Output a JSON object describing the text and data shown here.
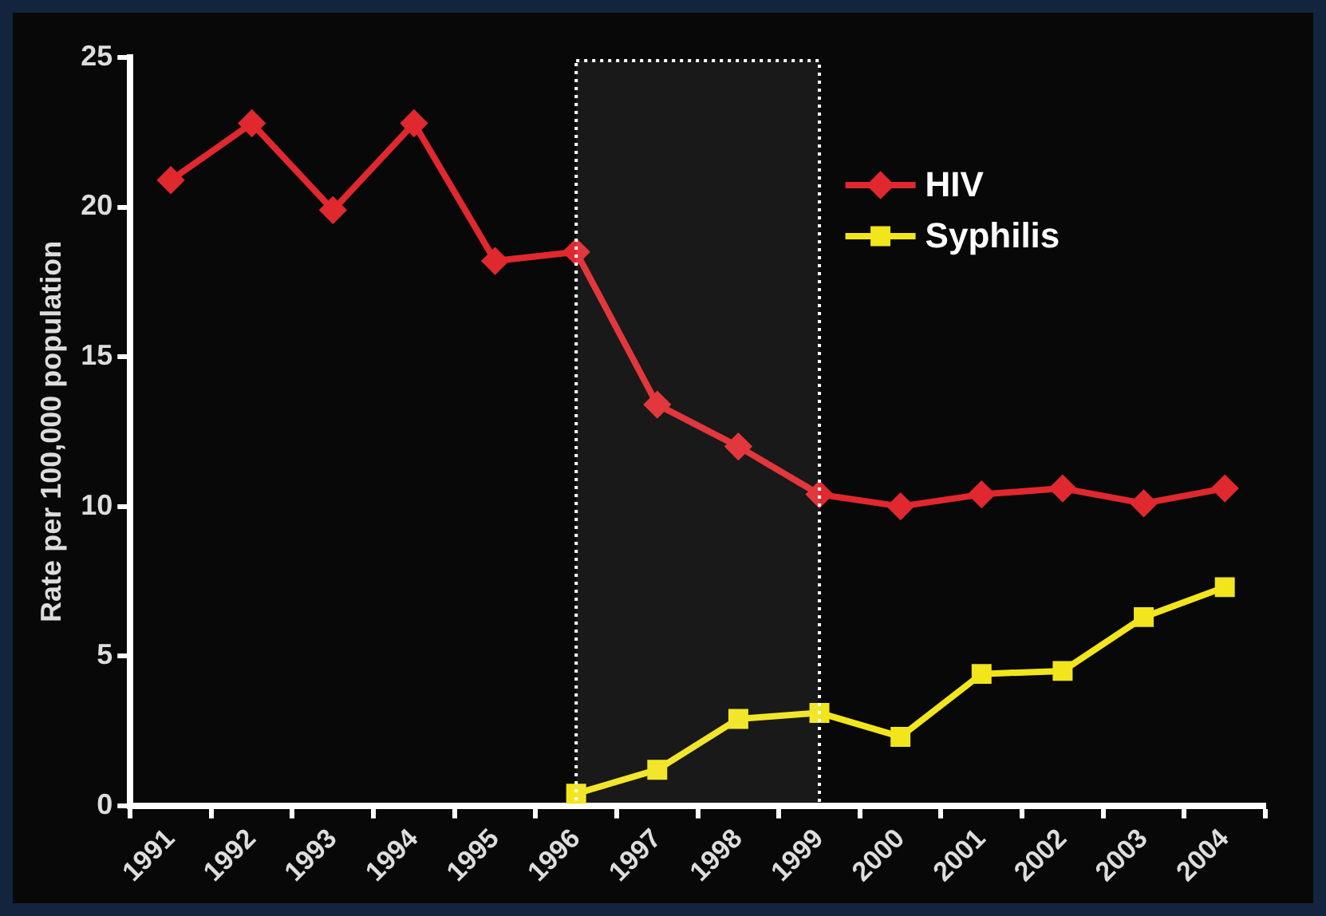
{
  "chart_data": {
    "type": "line",
    "ylabel": "Rate per 100,000 population",
    "categories": [
      "1991",
      "1992",
      "1993",
      "1994",
      "1995",
      "1996",
      "1997",
      "1998",
      "1999",
      "2000",
      "2001",
      "2002",
      "2003",
      "2004"
    ],
    "series": [
      {
        "name": "HIV",
        "color": "#e0282e",
        "marker": "diamond",
        "values": [
          20.9,
          22.8,
          19.9,
          22.8,
          18.2,
          18.5,
          13.4,
          12.0,
          10.4,
          10.0,
          10.4,
          10.6,
          10.1,
          10.6
        ]
      },
      {
        "name": "Syphilis",
        "color": "#f2e51c",
        "marker": "square",
        "values": [
          null,
          null,
          null,
          null,
          null,
          0.4,
          1.2,
          2.9,
          3.1,
          2.3,
          4.4,
          4.5,
          6.3,
          7.3
        ]
      }
    ],
    "ylim": [
      0,
      25
    ],
    "yticks": [
      0,
      5,
      10,
      15,
      20,
      25
    ],
    "grid": false,
    "legend": "top right",
    "bands": [
      {
        "axis": "x",
        "from": "1996",
        "to": "1999",
        "color": "#ffffff"
      }
    ]
  }
}
